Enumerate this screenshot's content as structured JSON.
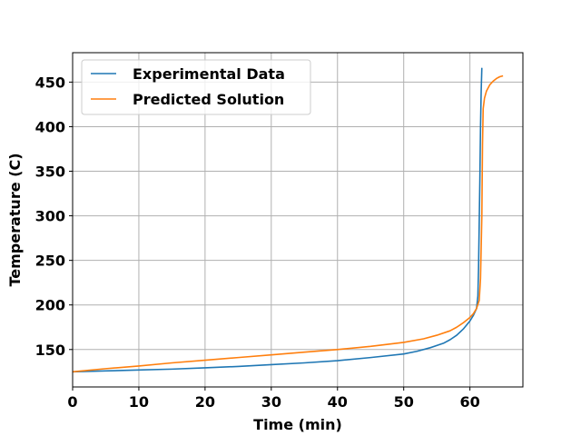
{
  "chart_data": {
    "type": "line",
    "title": "",
    "xlabel": "Time (min)",
    "ylabel": "Temperature (C)",
    "xlim": [
      0,
      68
    ],
    "ylim": [
      108,
      483
    ],
    "xticks": [
      0,
      10,
      20,
      30,
      40,
      50,
      60
    ],
    "yticks": [
      150,
      200,
      250,
      300,
      350,
      400,
      450
    ],
    "grid": true,
    "legend_position": "top-left",
    "series": [
      {
        "name": "Experimental Data",
        "color": "#1f77b4",
        "x": [
          0,
          5,
          10,
          15,
          20,
          25,
          30,
          35,
          40,
          45,
          50,
          52,
          54,
          56,
          57,
          58,
          59,
          60,
          60.5,
          61,
          61.2,
          61.3,
          61.4,
          61.5,
          61.6,
          61.7,
          61.8
        ],
        "y": [
          125,
          126,
          127,
          128,
          129.5,
          131,
          133,
          135,
          137.5,
          141,
          145,
          148,
          152,
          157,
          161,
          166,
          173,
          182,
          188,
          196,
          210,
          240,
          290,
          340,
          400,
          440,
          466
        ]
      },
      {
        "name": "Predicted Solution",
        "color": "#ff7f0e",
        "x": [
          0,
          5,
          10,
          15,
          20,
          25,
          30,
          35,
          40,
          45,
          50,
          53,
          55,
          57,
          58,
          59,
          60,
          60.5,
          61,
          61.4,
          61.6,
          61.8,
          61.9,
          62,
          62.2,
          62.5,
          63,
          63.5,
          64,
          64.5,
          65
        ],
        "y": [
          125,
          128.5,
          131.5,
          135,
          138,
          141,
          144,
          147,
          150,
          153.5,
          158,
          162,
          166,
          171,
          175,
          180,
          186,
          190,
          196,
          205,
          230,
          300,
          380,
          420,
          432,
          440,
          447,
          451,
          454,
          456,
          457
        ]
      }
    ]
  }
}
